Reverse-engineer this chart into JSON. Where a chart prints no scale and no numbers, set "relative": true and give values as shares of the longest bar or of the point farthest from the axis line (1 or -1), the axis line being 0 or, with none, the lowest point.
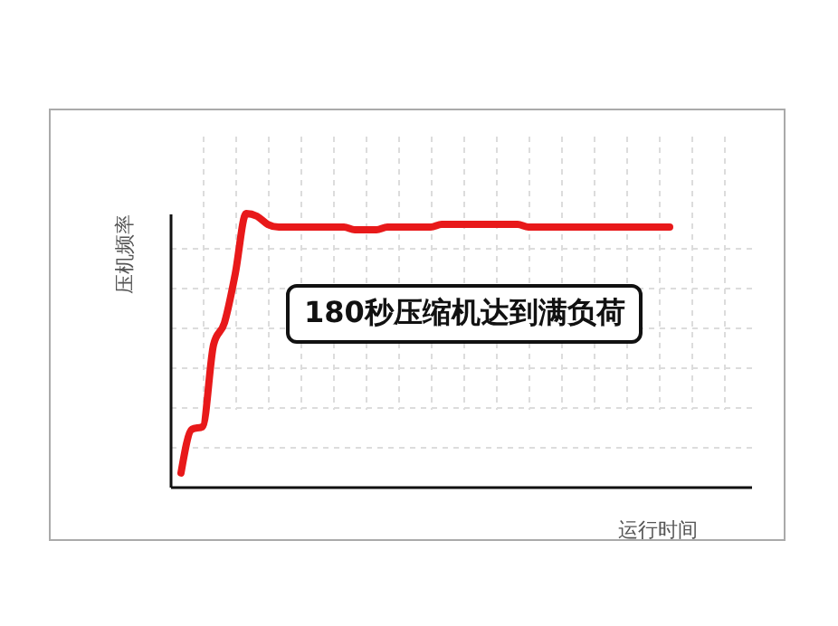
{
  "chart_data": {
    "type": "line",
    "relative": true,
    "xlabel": "运行时间",
    "ylabel": "压机频率",
    "grid": true,
    "line_style": "solid",
    "annotations": [
      "180秒压缩机达到满负荷"
    ],
    "categories": [
      null,
      null,
      null,
      null,
      null,
      null,
      null,
      null,
      null,
      null,
      null,
      null,
      null,
      null,
      null,
      null,
      null,
      null,
      null,
      null,
      null,
      null,
      null,
      null,
      null,
      null,
      null,
      null,
      null,
      null,
      null,
      null,
      null,
      null,
      null,
      null,
      null,
      null,
      null,
      null,
      null,
      null,
      null,
      null,
      null,
      null
    ],
    "series": [
      {
        "color": "#e8191a",
        "values": [
          0.05,
          0.21,
          0.22,
          0.52,
          0.6,
          0.78,
          1,
          0.99,
          0.96,
          0.95,
          0.95,
          0.95,
          0.95,
          0.95,
          0.95,
          0.95,
          0.94,
          0.94,
          0.94,
          0.95,
          0.95,
          0.95,
          0.95,
          0.95,
          0.96,
          0.96,
          0.96,
          0.96,
          0.96,
          0.96,
          0.96,
          0.96,
          0.95,
          0.95,
          0.95,
          0.95,
          0.95,
          0.95,
          0.95,
          0.95,
          0.95,
          0.95,
          0.95,
          0.95,
          0.95,
          0.95
        ]
      }
    ]
  }
}
